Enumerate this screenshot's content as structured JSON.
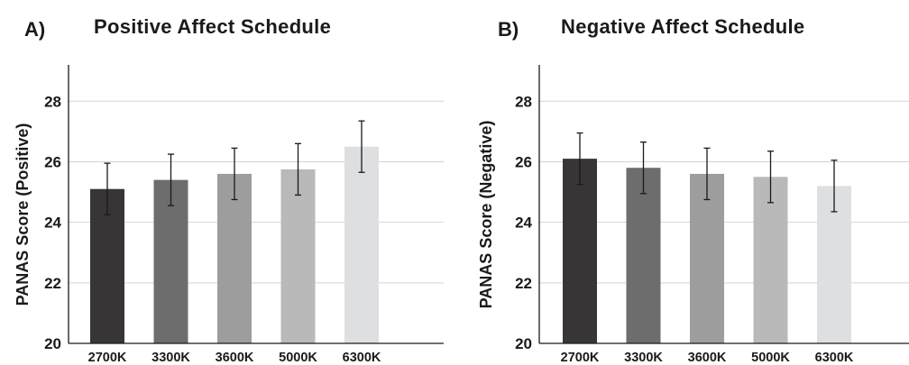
{
  "colors": [
    "#383536",
    "#6e6d6d",
    "#9e9d9d",
    "#b9b9b9",
    "#dedfe0"
  ],
  "chart_data": [
    {
      "panel": "A)",
      "type": "bar",
      "title": "Positive Affect Schedule",
      "ylabel": "PANAS Score (Positive)",
      "xlabel": "",
      "ylim": [
        20,
        29.2
      ],
      "yticks": [
        20,
        22,
        24,
        26,
        28
      ],
      "grid": true,
      "categories": [
        "2700K",
        "3300K",
        "3600K",
        "5000K",
        "6300K"
      ],
      "values": [
        25.1,
        25.4,
        25.6,
        25.75,
        26.5
      ],
      "error": [
        0.85,
        0.85,
        0.85,
        0.85,
        0.85
      ]
    },
    {
      "panel": "B)",
      "type": "bar",
      "title": "Negative Affect Schedule",
      "ylabel": "PANAS Score (Negative)",
      "xlabel": "",
      "ylim": [
        20,
        29.2
      ],
      "yticks": [
        20,
        22,
        24,
        26,
        28
      ],
      "grid": true,
      "categories": [
        "2700K",
        "3300K",
        "3600K",
        "5000K",
        "6300K"
      ],
      "values": [
        26.1,
        25.8,
        25.6,
        25.5,
        25.2
      ],
      "error": [
        0.85,
        0.85,
        0.85,
        0.85,
        0.85
      ]
    }
  ]
}
